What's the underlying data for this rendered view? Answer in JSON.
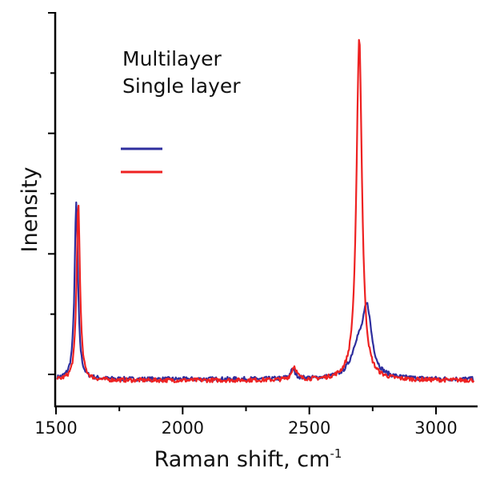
{
  "chart_data": {
    "type": "line",
    "title": "",
    "xlabel": "Raman shift, cm",
    "xlabel_superscript": "-1",
    "ylabel": "Inensity",
    "xlim": [
      1500,
      3150
    ],
    "ylim": [
      -0.55,
      6
    ],
    "x_ticks": [
      1500,
      2000,
      2500,
      3000
    ],
    "x_ticks_minor": [
      1750,
      2250,
      2750
    ],
    "x_tick_labels": [
      "1500",
      "2000",
      "2500",
      "3000"
    ],
    "y_ticks": [
      0,
      2,
      4,
      6
    ],
    "y_ticks_minor": [
      1,
      3,
      5
    ],
    "grid": false,
    "legend": {
      "placement": "top-left",
      "entries": [
        {
          "label": "Multilayer",
          "color": "#2e2e9e"
        },
        {
          "label": "Single layer",
          "color": "#ee2222"
        }
      ]
    },
    "series": [
      {
        "name": "Multilayer",
        "color": "#2e2e9e",
        "baseline": -0.08,
        "noise": 0.035,
        "peaks": [
          {
            "center": 1580,
            "height": 2.92,
            "width": 8
          },
          {
            "center": 2435,
            "height": 0.15,
            "width": 12
          },
          {
            "center": 2690,
            "height": 0.45,
            "width": 30
          },
          {
            "center": 2728,
            "height": 1.08,
            "width": 22
          }
        ]
      },
      {
        "name": "Single layer",
        "color": "#ee2222",
        "baseline": -0.1,
        "noise": 0.035,
        "peaks": [
          {
            "center": 1588,
            "height": 2.94,
            "width": 8
          },
          {
            "center": 2440,
            "height": 0.22,
            "width": 12
          },
          {
            "center": 2697,
            "height": 5.7,
            "width": 13
          }
        ]
      }
    ]
  }
}
